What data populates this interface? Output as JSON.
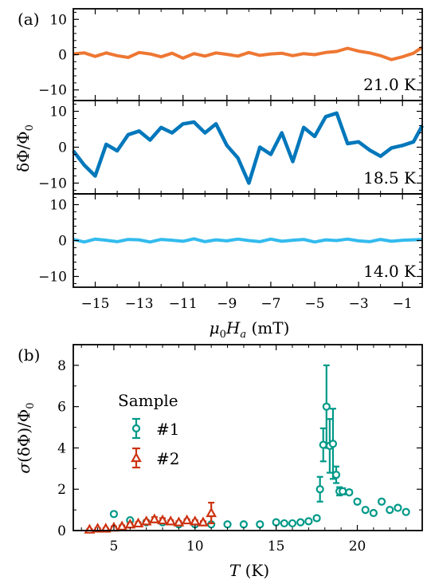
{
  "panel_labels": {
    "a": "(a)",
    "b": "(b)"
  },
  "chart_data": [
    {
      "id": "a",
      "type": "line",
      "xlabel": "μ0Ha (mT)",
      "ylabel": "δΦ/Φ0",
      "xlim": [
        -16,
        -0.1
      ],
      "ylim": [
        -13,
        13
      ],
      "xticks": [
        -15,
        -13,
        -11,
        -9,
        -7,
        -5,
        -3,
        -1
      ],
      "yticks": [
        -10,
        0,
        10
      ],
      "x": [
        -16,
        -15.5,
        -15,
        -14.5,
        -14,
        -13.5,
        -13,
        -12.5,
        -12,
        -11.5,
        -11,
        -10.5,
        -10,
        -9.5,
        -9,
        -8.5,
        -8,
        -7.5,
        -7,
        -6.5,
        -6,
        -5.5,
        -5,
        -4.5,
        -4,
        -3.5,
        -3,
        -2.5,
        -2,
        -1.5,
        -1,
        -0.5,
        -0.1
      ],
      "series": [
        {
          "label": "21.0 K",
          "color": "#ee7733",
          "values": [
            0.2,
            0.5,
            -0.5,
            0.5,
            -0.3,
            -0.8,
            0.6,
            0.2,
            -0.6,
            0.4,
            -1.0,
            0.3,
            -0.4,
            0.5,
            0.1,
            -0.4,
            0.6,
            -0.2,
            0.2,
            0.4,
            -0.3,
            0.3,
            0.0,
            0.6,
            0.9,
            1.8,
            1.0,
            0.5,
            -0.3,
            -1.4,
            -0.6,
            0.4,
            2.1
          ]
        },
        {
          "label": "18.5 K",
          "color": "#0077bb",
          "values": [
            -1.0,
            -5.0,
            -8.0,
            0.8,
            -1.0,
            3.5,
            4.5,
            2.0,
            5.5,
            4.0,
            6.5,
            7.0,
            4.0,
            6.5,
            0.5,
            -3.0,
            -10.0,
            0.0,
            -2.0,
            4.0,
            -4.0,
            5.5,
            3.0,
            8.5,
            9.5,
            1.0,
            1.5,
            -0.8,
            -2.5,
            -0.2,
            0.5,
            1.5,
            6.0
          ]
        },
        {
          "label": "14.0 K",
          "color": "#33bbee",
          "values": [
            0.3,
            -0.4,
            0.4,
            0.1,
            -0.3,
            0.3,
            0.2,
            -0.4,
            0.3,
            0.1,
            -0.2,
            0.5,
            -0.3,
            0.2,
            -0.1,
            0.4,
            0.0,
            -0.3,
            0.4,
            -0.2,
            0.1,
            0.3,
            -0.4,
            0.2,
            0.0,
            0.4,
            -0.1,
            -0.3,
            0.3,
            -0.2,
            0.1,
            0.2,
            0.3
          ]
        }
      ]
    },
    {
      "id": "b",
      "type": "scatter",
      "xlabel": "T (K)",
      "ylabel": "σ(δΦ)/Φ0",
      "xlim": [
        2.5,
        24
      ],
      "ylim": [
        0,
        9
      ],
      "xticks": [
        5,
        10,
        15,
        20
      ],
      "yticks": [
        0,
        2,
        4,
        6,
        8
      ],
      "legend": {
        "title": "Sample",
        "position": "upper-left"
      },
      "series": [
        {
          "name": "#1",
          "color": "#009988",
          "marker": "circle",
          "x": [
            5,
            6,
            7,
            8,
            9,
            10,
            11,
            12,
            13,
            14,
            15,
            15.5,
            16,
            16.5,
            17,
            17.5,
            17.7,
            17.9,
            18.1,
            18.3,
            18.5,
            18.7,
            18.9,
            19.1,
            19.5,
            20,
            20.5,
            21,
            21.5,
            22,
            22.5,
            23
          ],
          "y": [
            0.8,
            0.5,
            0.4,
            0.4,
            0.3,
            0.3,
            0.3,
            0.3,
            0.3,
            0.3,
            0.4,
            0.35,
            0.35,
            0.4,
            0.45,
            0.6,
            2.0,
            4.15,
            6.0,
            4.1,
            4.2,
            2.7,
            1.9,
            1.9,
            1.85,
            1.4,
            1.0,
            0.85,
            1.4,
            1.0,
            1.1,
            0.9
          ],
          "err": [
            0.1,
            0.05,
            0.05,
            0.05,
            0.05,
            0.05,
            0.05,
            0.05,
            0.05,
            0.1,
            0.05,
            0.05,
            0.05,
            0.05,
            0.05,
            0.1,
            0.6,
            0.8,
            2.0,
            1.3,
            1.7,
            0.4,
            0.2,
            0.15,
            0.1,
            0.1,
            0.05,
            0.05,
            0.1,
            0.05,
            0.05,
            0.05
          ]
        },
        {
          "name": "#2",
          "color": "#cc3311",
          "marker": "triangle",
          "x": [
            3.5,
            4,
            4.5,
            5,
            5.5,
            6,
            6.5,
            7,
            7.5,
            8,
            8.5,
            9,
            9.5,
            10,
            10.5,
            11
          ],
          "y": [
            0.05,
            0.1,
            0.1,
            0.15,
            0.2,
            0.3,
            0.35,
            0.45,
            0.55,
            0.5,
            0.45,
            0.4,
            0.5,
            0.45,
            0.4,
            0.85
          ],
          "err": [
            0.02,
            0.02,
            0.02,
            0.05,
            0.05,
            0.05,
            0.05,
            0.05,
            0.1,
            0.1,
            0.05,
            0.05,
            0.05,
            0.05,
            0.05,
            0.5
          ]
        }
      ]
    }
  ]
}
